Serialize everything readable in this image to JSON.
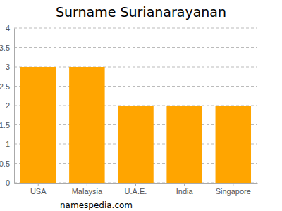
{
  "chart_data": {
    "type": "bar",
    "title": "Surname Surianarayanan",
    "categories": [
      "USA",
      "Malaysia",
      "U.A.E.",
      "India",
      "Singapore"
    ],
    "values": [
      3,
      3,
      2,
      2,
      2
    ],
    "color": "#ffa500",
    "ylim": [
      0,
      4
    ],
    "yticks": [
      0,
      0.5,
      1,
      1.5,
      2,
      2.5,
      3,
      3.5,
      4
    ],
    "grid": true,
    "annotations": [
      "namespedia.com"
    ]
  }
}
